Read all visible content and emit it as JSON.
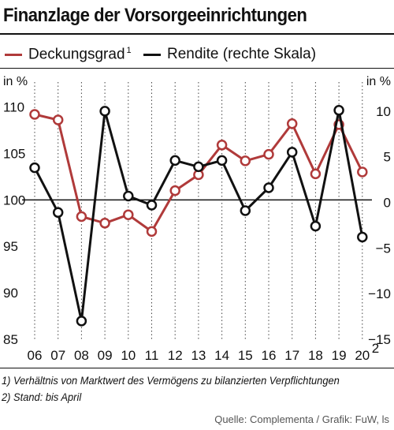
{
  "title": "Finanzlage der Vorsorgeeinrichtungen",
  "legend": {
    "left": {
      "label": "Deckungsgrad",
      "sup": "1",
      "color": "#b03a3a"
    },
    "right": {
      "label": "Rendite (rechte Skala)",
      "color": "#111111"
    }
  },
  "axes": {
    "left_unit": "in %",
    "right_unit": "in %",
    "left_ticks": [
      "110",
      "105",
      "100",
      "95",
      "90",
      "85"
    ],
    "right_ticks": [
      "10",
      "5",
      "0",
      "−5",
      "−10",
      "−15"
    ],
    "x_ticks": [
      "06",
      "07",
      "08",
      "09",
      "10",
      "11",
      "12",
      "13",
      "14",
      "15",
      "16",
      "17",
      "18",
      "19",
      "20"
    ],
    "x_last_sup": "2"
  },
  "footnotes": {
    "note1": "1) Verhältnis von Marktwert des Vermögens zu bilanzierten Verpflichtungen",
    "note2": "2) Stand: bis April"
  },
  "source": "Quelle: Complementa / Grafik: FuW, ls",
  "chart_data": {
    "type": "line",
    "x": [
      "06",
      "07",
      "08",
      "09",
      "10",
      "11",
      "12",
      "13",
      "14",
      "15",
      "16",
      "17",
      "18",
      "19",
      "20"
    ],
    "series": [
      {
        "name": "Deckungsgrad",
        "axis": "left",
        "color": "#b03a3a",
        "values": [
          109.2,
          108.6,
          98.2,
          97.5,
          98.4,
          96.6,
          101.0,
          102.7,
          105.9,
          104.2,
          104.9,
          108.2,
          102.8,
          108.1,
          103.0
        ]
      },
      {
        "name": "Rendite",
        "axis": "right",
        "color": "#111111",
        "values": [
          3.8,
          -1.1,
          -13.0,
          10.0,
          0.7,
          -0.3,
          4.6,
          3.9,
          4.6,
          -0.9,
          1.6,
          5.5,
          -2.6,
          10.1,
          -3.8
        ]
      }
    ],
    "left_ylim": [
      85,
      112
    ],
    "right_ylim": [
      -15,
      12.5
    ],
    "grid": "vertical dotted lines, solid zero line",
    "markers": "open circles"
  }
}
